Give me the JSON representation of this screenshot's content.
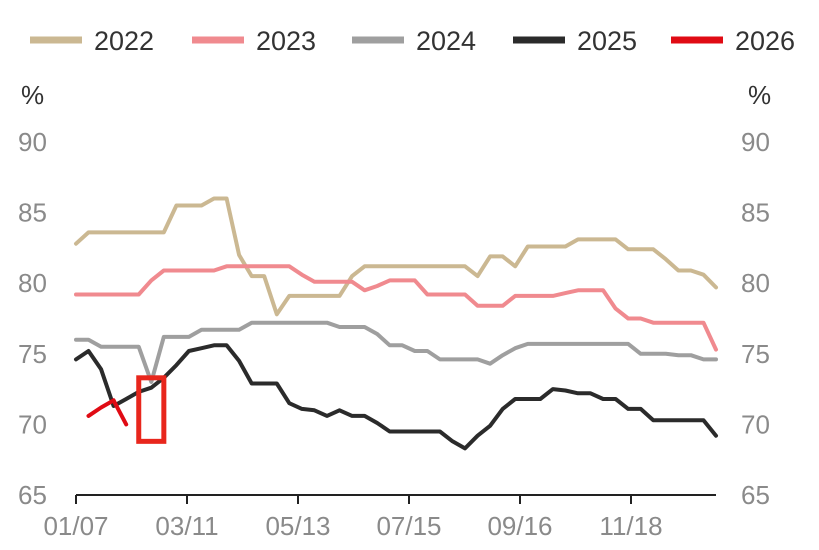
{
  "chart_data": {
    "type": "line",
    "unit_left": "%",
    "unit_right": "%",
    "ylim": [
      65,
      90
    ],
    "yticks": [
      65,
      70,
      75,
      80,
      85,
      90
    ],
    "xticks": [
      "01/07",
      "03/11",
      "05/13",
      "07/15",
      "09/16",
      "11/18"
    ],
    "xlim": [
      0,
      51
    ],
    "legend_position": "top",
    "highlight_box": {
      "x_start": 5,
      "x_end": 7,
      "y_low": 68.8,
      "y_high": 73.3,
      "color": "#e8261c"
    },
    "series": [
      {
        "name": "2022",
        "color": "#cbb892",
        "x": [
          0,
          1,
          2,
          3,
          4,
          5,
          6,
          7,
          8,
          9,
          10,
          11,
          12,
          13,
          14,
          15,
          16,
          17,
          18,
          19,
          20,
          21,
          22,
          23,
          24,
          25,
          26,
          27,
          28,
          29,
          30,
          31,
          32,
          33,
          34,
          35,
          36,
          37,
          38,
          39,
          40,
          41,
          42,
          43,
          44,
          45,
          46,
          47,
          48,
          49,
          50,
          51
        ],
        "values": [
          82.8,
          83.6,
          83.6,
          83.6,
          83.6,
          83.6,
          83.6,
          83.6,
          85.5,
          85.5,
          85.5,
          86.0,
          86.0,
          82.0,
          80.5,
          80.5,
          77.8,
          79.1,
          79.1,
          79.1,
          79.1,
          79.1,
          80.5,
          81.2,
          81.2,
          81.2,
          81.2,
          81.2,
          81.2,
          81.2,
          81.2,
          81.2,
          80.5,
          81.9,
          81.9,
          81.2,
          82.6,
          82.6,
          82.6,
          82.6,
          83.1,
          83.1,
          83.1,
          83.1,
          82.4,
          82.4,
          82.4,
          81.7,
          80.9,
          80.9,
          80.6,
          79.7
        ]
      },
      {
        "name": "2023",
        "color": "#f08a8f",
        "x": [
          0,
          1,
          2,
          3,
          4,
          5,
          6,
          7,
          8,
          9,
          10,
          11,
          12,
          13,
          14,
          15,
          16,
          17,
          18,
          19,
          20,
          21,
          22,
          23,
          24,
          25,
          26,
          27,
          28,
          29,
          30,
          31,
          32,
          33,
          34,
          35,
          36,
          37,
          38,
          39,
          40,
          41,
          42,
          43,
          44,
          45,
          46,
          47,
          48,
          49,
          50,
          51
        ],
        "values": [
          79.2,
          79.2,
          79.2,
          79.2,
          79.2,
          79.2,
          80.2,
          80.9,
          80.9,
          80.9,
          80.9,
          80.9,
          81.2,
          81.2,
          81.2,
          81.2,
          81.2,
          81.2,
          80.6,
          80.1,
          80.1,
          80.1,
          80.1,
          79.5,
          79.8,
          80.2,
          80.2,
          80.2,
          79.2,
          79.2,
          79.2,
          79.2,
          78.4,
          78.4,
          78.4,
          79.1,
          79.1,
          79.1,
          79.1,
          79.3,
          79.5,
          79.5,
          79.5,
          78.2,
          77.5,
          77.5,
          77.2,
          77.2,
          77.2,
          77.2,
          77.2,
          75.3
        ]
      },
      {
        "name": "2024",
        "color": "#9f9f9f",
        "x": [
          0,
          1,
          2,
          3,
          4,
          5,
          6,
          7,
          8,
          9,
          10,
          11,
          12,
          13,
          14,
          15,
          16,
          17,
          18,
          19,
          20,
          21,
          22,
          23,
          24,
          25,
          26,
          27,
          28,
          29,
          30,
          31,
          32,
          33,
          34,
          35,
          36,
          37,
          38,
          39,
          40,
          41,
          42,
          43,
          44,
          45,
          46,
          47,
          48,
          49,
          50,
          51
        ],
        "values": [
          76.0,
          76.0,
          75.5,
          75.5,
          75.5,
          75.5,
          73.0,
          76.2,
          76.2,
          76.2,
          76.7,
          76.7,
          76.7,
          76.7,
          77.2,
          77.2,
          77.2,
          77.2,
          77.2,
          77.2,
          77.2,
          76.9,
          76.9,
          76.9,
          76.4,
          75.6,
          75.6,
          75.2,
          75.2,
          74.6,
          74.6,
          74.6,
          74.6,
          74.3,
          74.9,
          75.4,
          75.7,
          75.7,
          75.7,
          75.7,
          75.7,
          75.7,
          75.7,
          75.7,
          75.7,
          75.0,
          75.0,
          75.0,
          74.9,
          74.9,
          74.6,
          74.6
        ]
      },
      {
        "name": "2025",
        "color": "#2b2b2b",
        "x": [
          0,
          1,
          2,
          3,
          4,
          5,
          6,
          7,
          8,
          9,
          10,
          11,
          12,
          13,
          14,
          15,
          16,
          17,
          18,
          19,
          20,
          21,
          22,
          23,
          24,
          25,
          26,
          27,
          28,
          29,
          30,
          31,
          32,
          33,
          34,
          35,
          36,
          37,
          38,
          39,
          40,
          41,
          42,
          43,
          44,
          45,
          46,
          47,
          48,
          49,
          50,
          51
        ],
        "values": [
          74.6,
          75.2,
          73.9,
          71.3,
          71.8,
          72.3,
          72.6,
          73.3,
          74.2,
          75.2,
          75.4,
          75.6,
          75.6,
          74.5,
          72.9,
          72.9,
          72.9,
          71.5,
          71.1,
          71.0,
          70.6,
          71.0,
          70.6,
          70.6,
          70.1,
          69.5,
          69.5,
          69.5,
          69.5,
          69.5,
          68.8,
          68.3,
          69.2,
          69.9,
          71.1,
          71.8,
          71.8,
          71.8,
          72.5,
          72.4,
          72.2,
          72.2,
          71.8,
          71.8,
          71.1,
          71.1,
          70.3,
          70.3,
          70.3,
          70.3,
          70.3,
          69.2
        ]
      },
      {
        "name": "2026",
        "color": "#e00b14",
        "x": [
          1,
          2,
          3
        ],
        "values": [
          70.6,
          71.2,
          71.7
        ]
      },
      {
        "name": "",
        "color": "#e00b14",
        "in_legend": false,
        "x": [
          3,
          4
        ],
        "values": [
          71.7,
          70.0
        ]
      }
    ]
  }
}
